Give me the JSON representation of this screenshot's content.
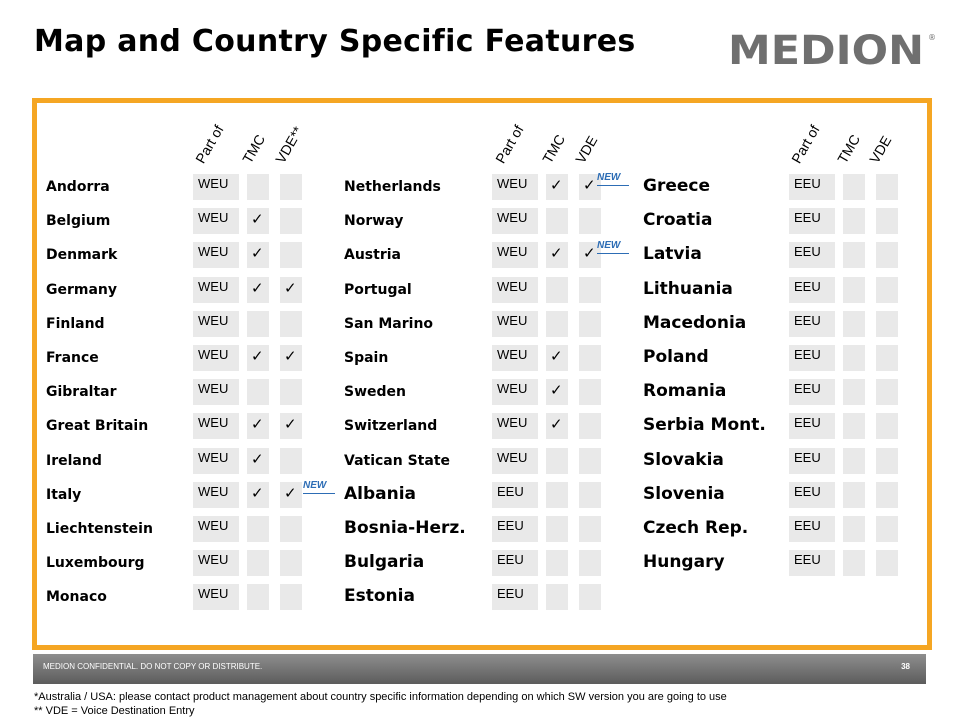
{
  "title": "Map and Country Specific Features",
  "logo_text": "MEDION",
  "column_headers": [
    "Part of",
    "TMC",
    "VDE**",
    "Part of",
    "TMC",
    "VDE",
    "Part of",
    "TMC",
    "VDE"
  ],
  "new_badge": "NEW",
  "check_mark": "✓",
  "columns": [
    [
      {
        "name": "Andorra",
        "part": "WEU",
        "tmc": false,
        "vde": false
      },
      {
        "name": "Belgium",
        "part": "WEU",
        "tmc": true,
        "vde": false
      },
      {
        "name": "Denmark",
        "part": "WEU",
        "tmc": true,
        "vde": false
      },
      {
        "name": "Germany",
        "part": "WEU",
        "tmc": true,
        "vde": true
      },
      {
        "name": "Finland",
        "part": "WEU",
        "tmc": false,
        "vde": false
      },
      {
        "name": "France",
        "part": "WEU",
        "tmc": true,
        "vde": true
      },
      {
        "name": "Gibraltar",
        "part": "WEU",
        "tmc": false,
        "vde": false
      },
      {
        "name": "Great Britain",
        "part": "WEU",
        "tmc": true,
        "vde": true
      },
      {
        "name": "Ireland",
        "part": "WEU",
        "tmc": true,
        "vde": false
      },
      {
        "name": "Italy",
        "part": "WEU",
        "tmc": true,
        "vde": true,
        "new": true
      },
      {
        "name": "Liechtenstein",
        "part": "WEU",
        "tmc": false,
        "vde": false
      },
      {
        "name": "Luxembourg",
        "part": "WEU",
        "tmc": false,
        "vde": false
      },
      {
        "name": "Monaco",
        "part": "WEU",
        "tmc": false,
        "vde": false
      }
    ],
    [
      {
        "name": "Netherlands",
        "part": "WEU",
        "tmc": true,
        "vde": true,
        "new": true
      },
      {
        "name": "Norway",
        "part": "WEU",
        "tmc": false,
        "vde": false
      },
      {
        "name": "Austria",
        "part": "WEU",
        "tmc": true,
        "vde": true,
        "new": true
      },
      {
        "name": "Portugal",
        "part": "WEU",
        "tmc": false,
        "vde": false
      },
      {
        "name": "San Marino",
        "part": "WEU",
        "tmc": false,
        "vde": false
      },
      {
        "name": "Spain",
        "part": "WEU",
        "tmc": true,
        "vde": false
      },
      {
        "name": "Sweden",
        "part": "WEU",
        "tmc": true,
        "vde": false
      },
      {
        "name": "Switzerland",
        "part": "WEU",
        "tmc": true,
        "vde": false
      },
      {
        "name": "Vatican State",
        "part": "WEU",
        "tmc": false,
        "vde": false
      },
      {
        "name": "Albania",
        "part": "EEU",
        "tmc": false,
        "vde": false,
        "large": true
      },
      {
        "name": "Bosnia-Herz.",
        "part": "EEU",
        "tmc": false,
        "vde": false,
        "large": true
      },
      {
        "name": "Bulgaria",
        "part": "EEU",
        "tmc": false,
        "vde": false,
        "large": true
      },
      {
        "name": "Estonia",
        "part": "EEU",
        "tmc": false,
        "vde": false,
        "large": true
      }
    ],
    [
      {
        "name": "Greece",
        "part": "EEU",
        "tmc": false,
        "vde": false,
        "large": true
      },
      {
        "name": "Croatia",
        "part": "EEU",
        "tmc": false,
        "vde": false,
        "large": true
      },
      {
        "name": "Latvia",
        "part": "EEU",
        "tmc": false,
        "vde": false,
        "large": true
      },
      {
        "name": "Lithuania",
        "part": "EEU",
        "tmc": false,
        "vde": false,
        "large": true
      },
      {
        "name": "Macedonia",
        "part": "EEU",
        "tmc": false,
        "vde": false,
        "large": true
      },
      {
        "name": "Poland",
        "part": "EEU",
        "tmc": false,
        "vde": false,
        "large": true
      },
      {
        "name": "Romania",
        "part": "EEU",
        "tmc": false,
        "vde": false,
        "large": true
      },
      {
        "name": "Serbia Mont.",
        "part": "EEU",
        "tmc": false,
        "vde": false,
        "large": true
      },
      {
        "name": "Slovakia",
        "part": "EEU",
        "tmc": false,
        "vde": false,
        "large": true
      },
      {
        "name": "Slovenia",
        "part": "EEU",
        "tmc": false,
        "vde": false,
        "large": true
      },
      {
        "name": "Czech Rep.",
        "part": "EEU",
        "tmc": false,
        "vde": false,
        "large": true
      },
      {
        "name": "Hungary",
        "part": "EEU",
        "tmc": false,
        "vde": false,
        "large": true
      }
    ]
  ],
  "footer": {
    "confidential": "MEDION CONFIDENTIAL. DO NOT COPY OR DISTRIBUTE.",
    "page_number": "38"
  },
  "notes": [
    "*Australia / USA: please contact product management about country specific information depending on which SW version you are going to use",
    "** VDE = Voice Destination Entry"
  ],
  "colors": {
    "frame": "#f5a623",
    "cell": "#e9e9e9",
    "new_badge": "#2d6db5",
    "logo": "#6f6f6f"
  }
}
